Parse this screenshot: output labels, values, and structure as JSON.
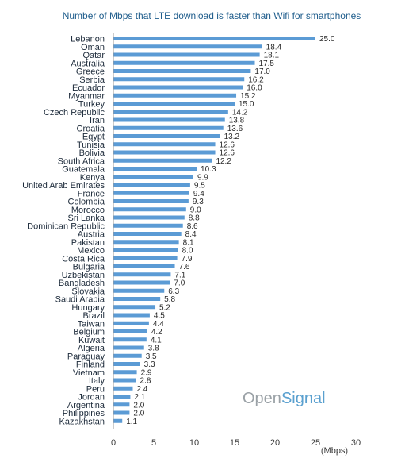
{
  "chart_data": {
    "type": "bar",
    "orientation": "horizontal",
    "title": "Number of Mbps that LTE download is faster than Wifi for smartphones",
    "xlabel": "(Mbps)",
    "ylabel": "",
    "xlim": [
      0,
      30
    ],
    "xticks": [
      "0",
      "5",
      "10",
      "15",
      "20",
      "25",
      "30"
    ],
    "grid": false,
    "legend": "none",
    "bar_color": "#5b9bd5",
    "categories": [
      "Lebanon",
      "Oman",
      "Qatar",
      "Australia",
      "Greece",
      "Serbia",
      "Ecuador",
      "Myanmar",
      "Turkey",
      "Czech Republic",
      "Iran",
      "Croatia",
      "Egypt",
      "Tunisia",
      "Bolivia",
      "South Africa",
      "Guatemala",
      "Kenya",
      "United Arab Emirates",
      "France",
      "Colombia",
      "Morocco",
      "Sri Lanka",
      "Dominican Republic",
      "Austria",
      "Pakistan",
      "Mexico",
      "Costa Rica",
      "Bulgaria",
      "Uzbekistan",
      "Bangladesh",
      "Slovakia",
      "Saudi Arabia",
      "Hungary",
      "Brazil",
      "Taiwan",
      "Belgium",
      "Kuwait",
      "Algeria",
      "Paraguay",
      "Finland",
      "Vietnam",
      "Italy",
      "Peru",
      "Jordan",
      "Argentina",
      "Philippines",
      "Kazakhstan"
    ],
    "values": [
      25.0,
      18.4,
      18.1,
      17.5,
      17.0,
      16.2,
      16.0,
      15.2,
      15.0,
      14.2,
      13.8,
      13.6,
      13.2,
      12.6,
      12.6,
      12.2,
      10.3,
      9.9,
      9.5,
      9.4,
      9.3,
      9.0,
      8.8,
      8.6,
      8.4,
      8.1,
      8.0,
      7.9,
      7.6,
      7.1,
      7.0,
      6.3,
      5.8,
      5.2,
      4.5,
      4.4,
      4.2,
      4.1,
      3.8,
      3.5,
      3.3,
      2.9,
      2.8,
      2.4,
      2.1,
      2.0,
      2.0,
      1.1
    ],
    "value_labels": [
      "25.0",
      "18.4",
      "18.1",
      "17.5",
      "17.0",
      "16.2",
      "16.0",
      "15.2",
      "15.0",
      "14.2",
      "13.8",
      "13.6",
      "13.2",
      "12.6",
      "12.6",
      "12.2",
      "10.3",
      "9.9",
      "9.5",
      "9.4",
      "9.3",
      "9.0",
      "8.8",
      "8.6",
      "8.4",
      "8.1",
      "8.0",
      "7.9",
      "7.6",
      "7.1",
      "7.0",
      "6.3",
      "5.8",
      "5.2",
      "4.5",
      "4.4",
      "4.2",
      "4.1",
      "3.8",
      "3.5",
      "3.3",
      "2.9",
      "2.8",
      "2.4",
      "2.1",
      "2.0",
      "2.0",
      "1.1"
    ]
  },
  "watermark": {
    "part1": "Open",
    "part2": "Signal"
  }
}
